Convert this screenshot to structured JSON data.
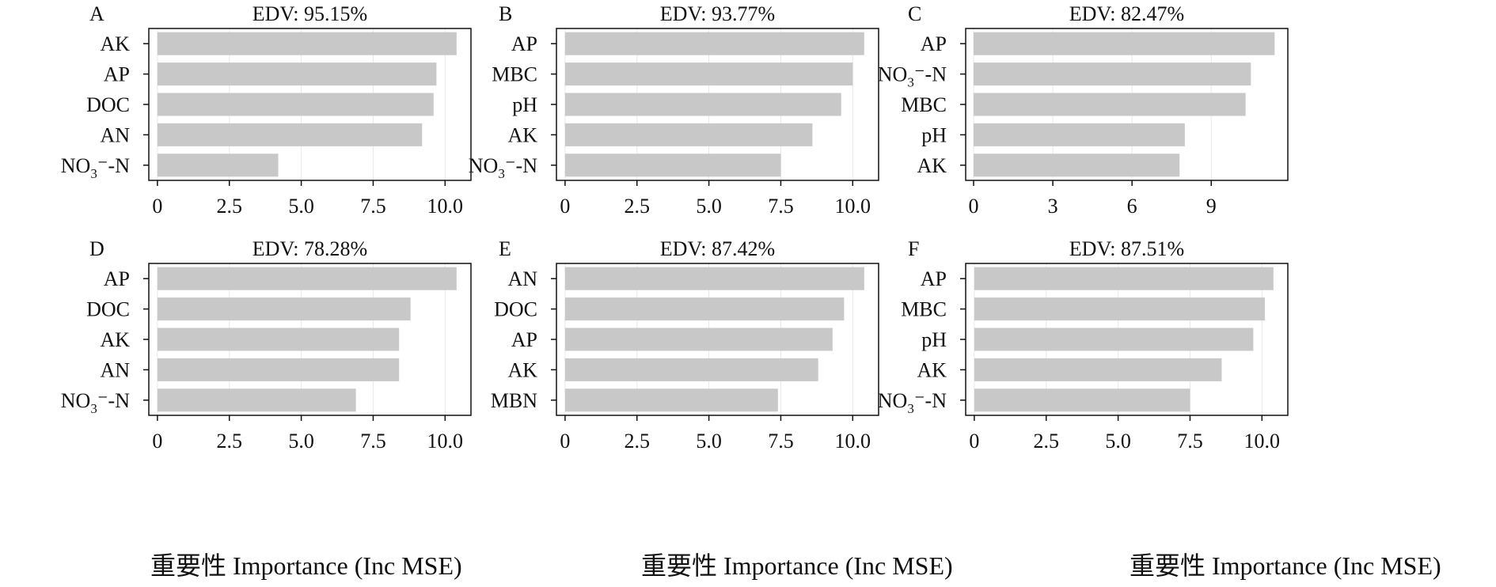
{
  "colors": {
    "bar": "#c8c8c8",
    "frame": "#111111",
    "grid": "#e8e8e8"
  },
  "xlabels": [
    "重要性 Importance (Inc MSE)",
    "重要性 Importance (Inc MSE)",
    "重要性 Importance (Inc MSE)"
  ],
  "chart_data": [
    {
      "type": "bar",
      "orientation": "horizontal",
      "panel": "A",
      "title": "EDV: 95.15%",
      "categories": [
        [
          "AK"
        ],
        [
          "AP"
        ],
        [
          "DOC"
        ],
        [
          "AN"
        ],
        [
          "NO",
          "3",
          "⁻-N"
        ]
      ],
      "values": [
        10.4,
        9.7,
        9.6,
        9.2,
        4.2
      ],
      "xlim": [
        -0.3,
        10.9
      ],
      "xticks": [
        0,
        2.5,
        5.0,
        7.5,
        10.0
      ],
      "xticklabels": [
        "0",
        "2.5",
        "5.0",
        "7.5",
        "10.0"
      ]
    },
    {
      "type": "bar",
      "orientation": "horizontal",
      "panel": "B",
      "title": "EDV: 93.77%",
      "categories": [
        [
          "AP"
        ],
        [
          "MBC"
        ],
        [
          "pH"
        ],
        [
          "AK"
        ],
        [
          "NO",
          "3",
          "⁻-N"
        ]
      ],
      "values": [
        10.4,
        10.0,
        9.6,
        8.6,
        7.5
      ],
      "xlim": [
        -0.3,
        10.9
      ],
      "xticks": [
        0,
        2.5,
        5.0,
        7.5,
        10.0
      ],
      "xticklabels": [
        "0",
        "2.5",
        "5.0",
        "7.5",
        "10.0"
      ]
    },
    {
      "type": "bar",
      "orientation": "horizontal",
      "panel": "C",
      "title": "EDV: 82.47%",
      "categories": [
        [
          "AP"
        ],
        [
          "NO",
          "3",
          "⁻-N"
        ],
        [
          "MBC"
        ],
        [
          "pH"
        ],
        [
          "AK"
        ]
      ],
      "values": [
        11.4,
        10.5,
        10.3,
        8.0,
        7.8
      ],
      "xlim": [
        -0.3,
        11.9
      ],
      "xticks": [
        0,
        3,
        6,
        9
      ],
      "xticklabels": [
        "0",
        "3",
        "6",
        "9"
      ]
    },
    {
      "type": "bar",
      "orientation": "horizontal",
      "panel": "D",
      "title": "EDV: 78.28%",
      "categories": [
        [
          "AP"
        ],
        [
          "DOC"
        ],
        [
          "AK"
        ],
        [
          "AN"
        ],
        [
          "NO",
          "3",
          "⁻-N"
        ]
      ],
      "values": [
        10.4,
        8.8,
        8.4,
        8.4,
        6.9
      ],
      "xlim": [
        -0.3,
        10.9
      ],
      "xticks": [
        0,
        2.5,
        5.0,
        7.5,
        10.0
      ],
      "xticklabels": [
        "0",
        "2.5",
        "5.0",
        "7.5",
        "10.0"
      ]
    },
    {
      "type": "bar",
      "orientation": "horizontal",
      "panel": "E",
      "title": "EDV: 87.42%",
      "categories": [
        [
          "AN"
        ],
        [
          "DOC"
        ],
        [
          "AP"
        ],
        [
          "AK"
        ],
        [
          "MBN"
        ]
      ],
      "values": [
        10.4,
        9.7,
        9.3,
        8.8,
        7.4
      ],
      "xlim": [
        -0.3,
        10.9
      ],
      "xticks": [
        0,
        2.5,
        5.0,
        7.5,
        10.0
      ],
      "xticklabels": [
        "0",
        "2.5",
        "5.0",
        "7.5",
        "10.0"
      ]
    },
    {
      "type": "bar",
      "orientation": "horizontal",
      "panel": "F",
      "title": "EDV: 87.51%",
      "categories": [
        [
          "AP"
        ],
        [
          "MBC"
        ],
        [
          "pH"
        ],
        [
          "AK"
        ],
        [
          "NO",
          "3",
          "⁻-N"
        ]
      ],
      "values": [
        10.4,
        10.1,
        9.7,
        8.6,
        7.5
      ],
      "xlim": [
        -0.3,
        10.9
      ],
      "xticks": [
        0,
        2.5,
        5.0,
        7.5,
        10.0
      ],
      "xticklabels": [
        "0",
        "2.5",
        "5.0",
        "7.5",
        "10.0"
      ]
    }
  ]
}
